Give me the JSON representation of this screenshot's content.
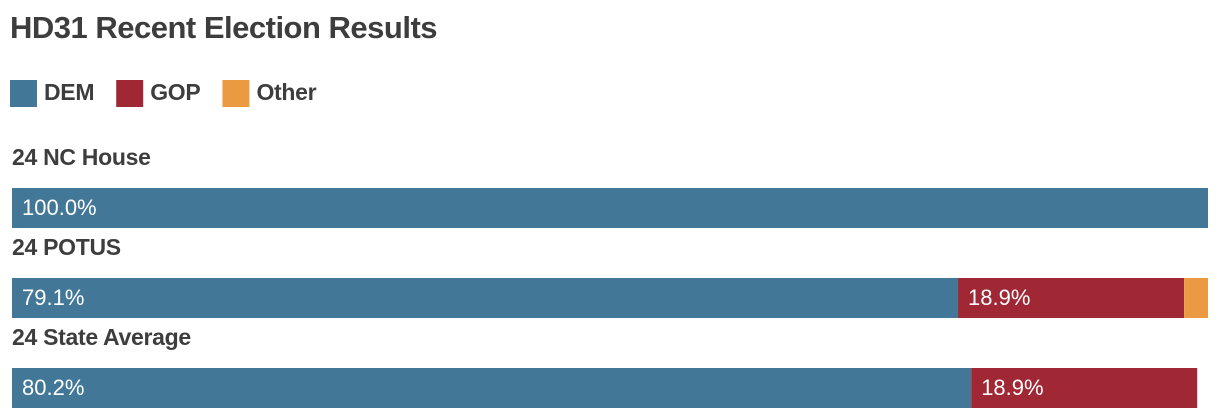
{
  "chart_data": {
    "type": "stacked-bar-horizontal",
    "title": "HD31 Recent Election Results",
    "categories": [
      "24 NC House",
      "24 POTUS",
      "24 State Average"
    ],
    "xlim": [
      0,
      100
    ],
    "series": [
      {
        "name": "DEM",
        "color": "#437797",
        "values": [
          100.0,
          79.1,
          80.2
        ],
        "value_labels": [
          "100.0%",
          "79.1%",
          "80.2%"
        ]
      },
      {
        "name": "GOP",
        "color": "#a02734",
        "values": [
          null,
          18.9,
          18.9
        ],
        "value_labels": [
          null,
          "18.9%",
          "18.9%"
        ]
      },
      {
        "name": "Other",
        "color": "#ec9a41",
        "values": [
          null,
          2.0,
          null
        ]
      }
    ]
  }
}
